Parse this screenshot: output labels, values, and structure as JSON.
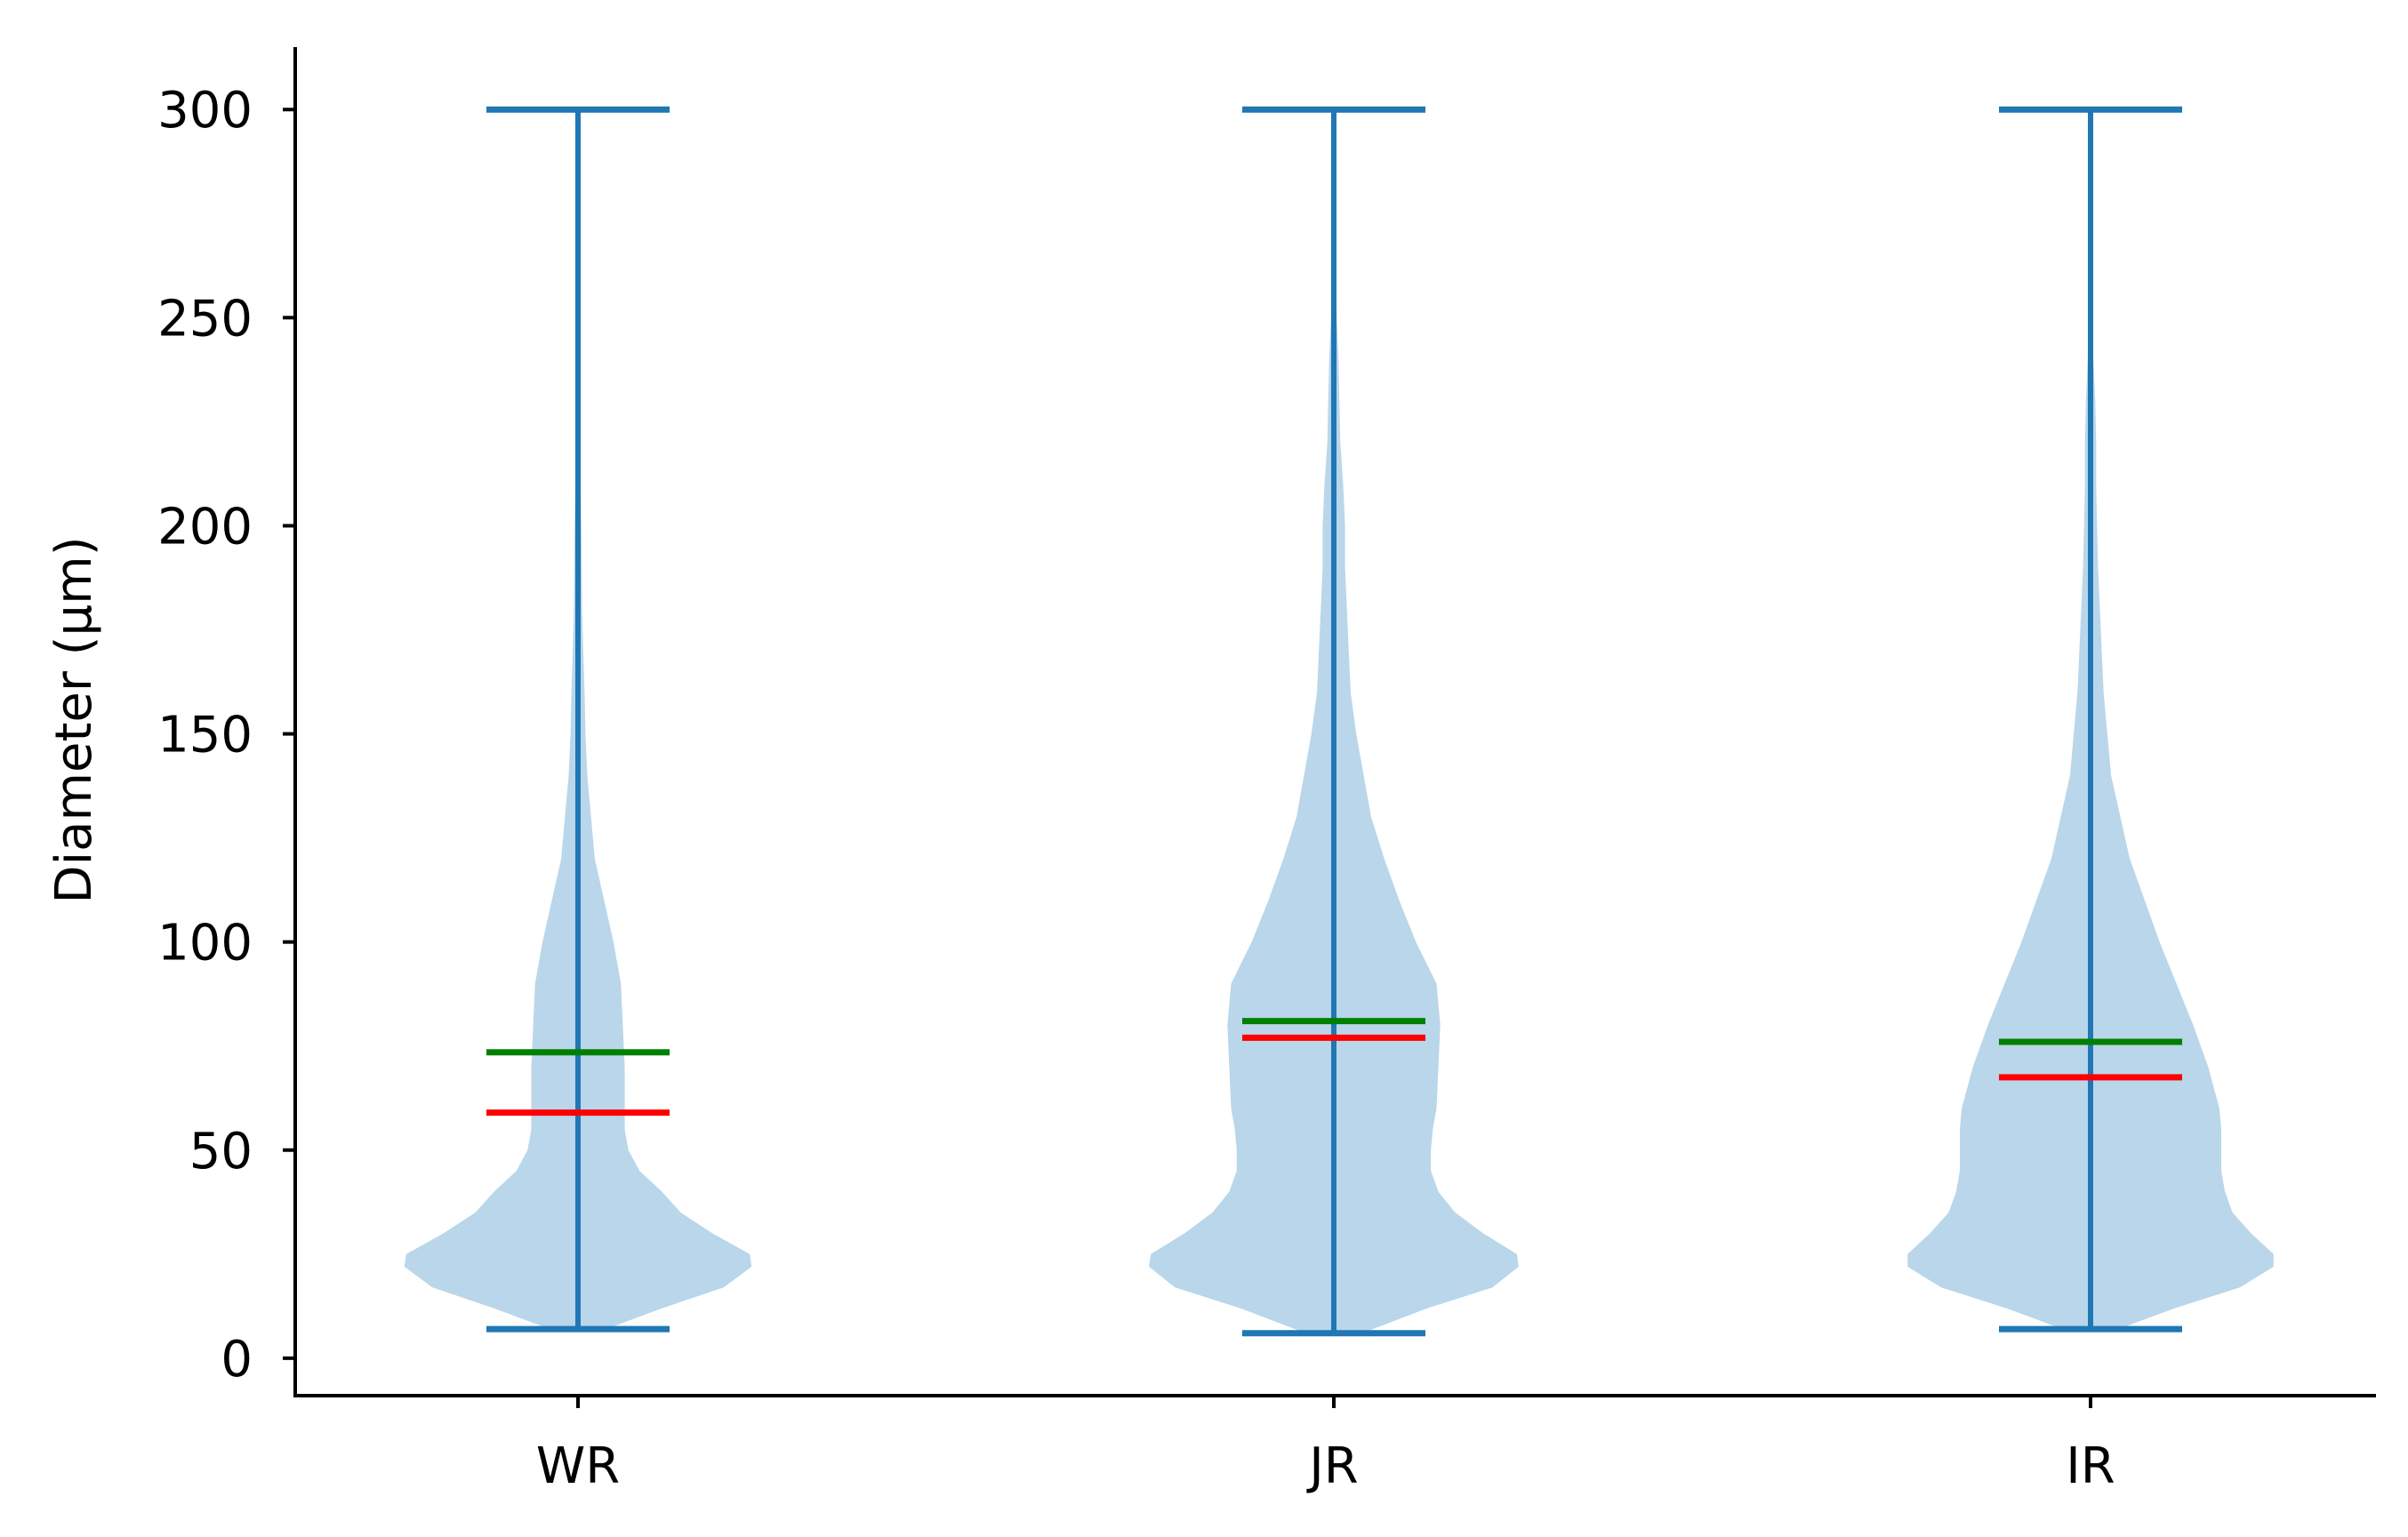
{
  "chart_data": {
    "type": "violin",
    "ylabel": "Diameter (μm)",
    "ylim": [
      -9,
      315
    ],
    "yticks": [
      "0",
      "50",
      "100",
      "150",
      "200",
      "250",
      "300"
    ],
    "categories": [
      "WR",
      "JR",
      "IR"
    ],
    "grid": false,
    "colors": {
      "body": "#bad6ea",
      "line": "#1f77b4",
      "mean": "#008000",
      "median": "#ff0000",
      "axis": "#000000"
    },
    "series": [
      {
        "category": "WR",
        "min": 7,
        "max": 300,
        "mean": 73.5,
        "median": 59,
        "density": [
          [
            7,
            0.15
          ],
          [
            12,
            0.45
          ],
          [
            17,
            0.78
          ],
          [
            22,
            0.93
          ],
          [
            25,
            0.92
          ],
          [
            30,
            0.72
          ],
          [
            35,
            0.55
          ],
          [
            40,
            0.45
          ],
          [
            45,
            0.33
          ],
          [
            50,
            0.27
          ],
          [
            55,
            0.25
          ],
          [
            60,
            0.25
          ],
          [
            70,
            0.25
          ],
          [
            80,
            0.24
          ],
          [
            90,
            0.23
          ],
          [
            100,
            0.19
          ],
          [
            110,
            0.14
          ],
          [
            120,
            0.09
          ],
          [
            130,
            0.07
          ],
          [
            140,
            0.05
          ],
          [
            150,
            0.04
          ],
          [
            160,
            0.035
          ],
          [
            170,
            0.028
          ],
          [
            180,
            0.022
          ],
          [
            190,
            0.02
          ],
          [
            200,
            0.018
          ],
          [
            210,
            0.014
          ],
          [
            220,
            0.011
          ],
          [
            230,
            0.008
          ],
          [
            240,
            0.005
          ],
          [
            245,
            0.002
          ]
        ]
      },
      {
        "category": "JR",
        "min": 6,
        "max": 300,
        "mean": 81,
        "median": 77,
        "density": [
          [
            6,
            0.15
          ],
          [
            12,
            0.5
          ],
          [
            17,
            0.85
          ],
          [
            22,
            0.99
          ],
          [
            25,
            0.98
          ],
          [
            30,
            0.8
          ],
          [
            35,
            0.65
          ],
          [
            40,
            0.56
          ],
          [
            45,
            0.52
          ],
          [
            50,
            0.52
          ],
          [
            55,
            0.53
          ],
          [
            60,
            0.55
          ],
          [
            70,
            0.56
          ],
          [
            80,
            0.57
          ],
          [
            90,
            0.55
          ],
          [
            100,
            0.44
          ],
          [
            110,
            0.35
          ],
          [
            120,
            0.27
          ],
          [
            130,
            0.2
          ],
          [
            140,
            0.16
          ],
          [
            150,
            0.12
          ],
          [
            160,
            0.09
          ],
          [
            170,
            0.08
          ],
          [
            180,
            0.07
          ],
          [
            190,
            0.06
          ],
          [
            200,
            0.06
          ],
          [
            210,
            0.05
          ],
          [
            220,
            0.035
          ],
          [
            230,
            0.03
          ],
          [
            240,
            0.025
          ],
          [
            250,
            0.015
          ],
          [
            260,
            0.012
          ],
          [
            270,
            0.005
          ],
          [
            275,
            0.002
          ]
        ]
      },
      {
        "category": "IR",
        "min": 7,
        "max": 300,
        "mean": 76,
        "median": 67.5,
        "density": [
          [
            7,
            0.15
          ],
          [
            12,
            0.45
          ],
          [
            17,
            0.8
          ],
          [
            22,
            0.98
          ],
          [
            25,
            0.98
          ],
          [
            30,
            0.86
          ],
          [
            35,
            0.76
          ],
          [
            40,
            0.72
          ],
          [
            45,
            0.7
          ],
          [
            50,
            0.7
          ],
          [
            55,
            0.7
          ],
          [
            60,
            0.69
          ],
          [
            70,
            0.63
          ],
          [
            80,
            0.55
          ],
          [
            90,
            0.46
          ],
          [
            100,
            0.37
          ],
          [
            110,
            0.29
          ],
          [
            120,
            0.21
          ],
          [
            130,
            0.16
          ],
          [
            140,
            0.11
          ],
          [
            150,
            0.09
          ],
          [
            160,
            0.07
          ],
          [
            170,
            0.06
          ],
          [
            180,
            0.05
          ],
          [
            190,
            0.04
          ],
          [
            200,
            0.035
          ],
          [
            210,
            0.03
          ],
          [
            220,
            0.03
          ],
          [
            230,
            0.025
          ],
          [
            240,
            0.015
          ],
          [
            250,
            0.01
          ],
          [
            260,
            0.007
          ],
          [
            270,
            0.002
          ]
        ]
      }
    ]
  }
}
